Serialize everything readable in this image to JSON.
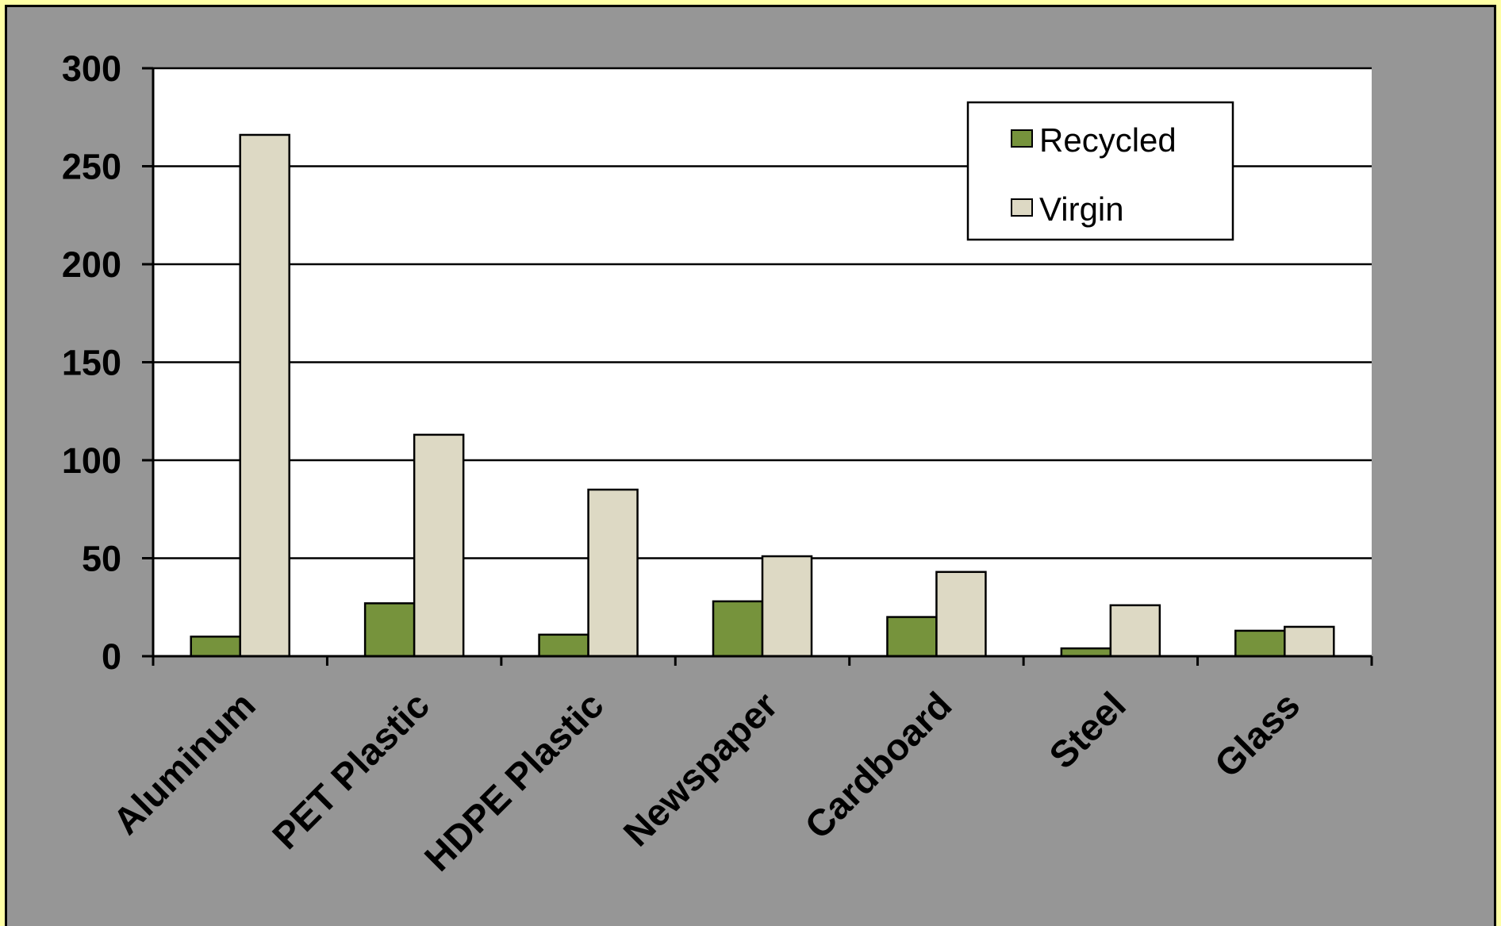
{
  "chart_data": {
    "type": "bar",
    "categories": [
      "Aluminum",
      "PET Plastic",
      "HDPE Plastic",
      "Newspaper",
      "Cardboard",
      "Steel",
      "Glass"
    ],
    "series": [
      {
        "name": "Recycled",
        "color": "#76933C",
        "values": [
          10,
          27,
          11,
          28,
          20,
          4,
          13
        ]
      },
      {
        "name": "Virgin",
        "color": "#DDD9C4",
        "values": [
          266,
          113,
          85,
          51,
          43,
          26,
          15
        ]
      }
    ],
    "y_ticks": [
      "0",
      "50",
      "100",
      "150",
      "200",
      "250",
      "300"
    ],
    "ylim": [
      0,
      300
    ],
    "grid": true,
    "legend_position": "top-right",
    "title": "",
    "xlabel": "",
    "ylabel": "",
    "colors": {
      "background": "#969696",
      "outer": "#FFFFA6",
      "plot": "#FFFFFF"
    }
  }
}
